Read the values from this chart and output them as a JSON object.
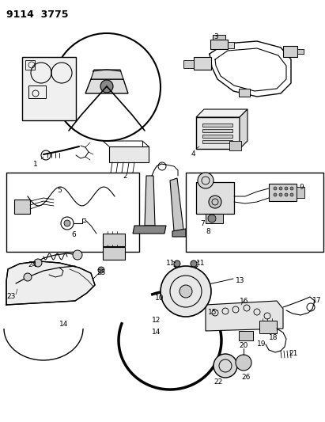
{
  "title": "9114  3775",
  "bg_color": "#ffffff",
  "line_color": "#000000",
  "fig_width": 4.11,
  "fig_height": 5.33,
  "dpi": 100
}
